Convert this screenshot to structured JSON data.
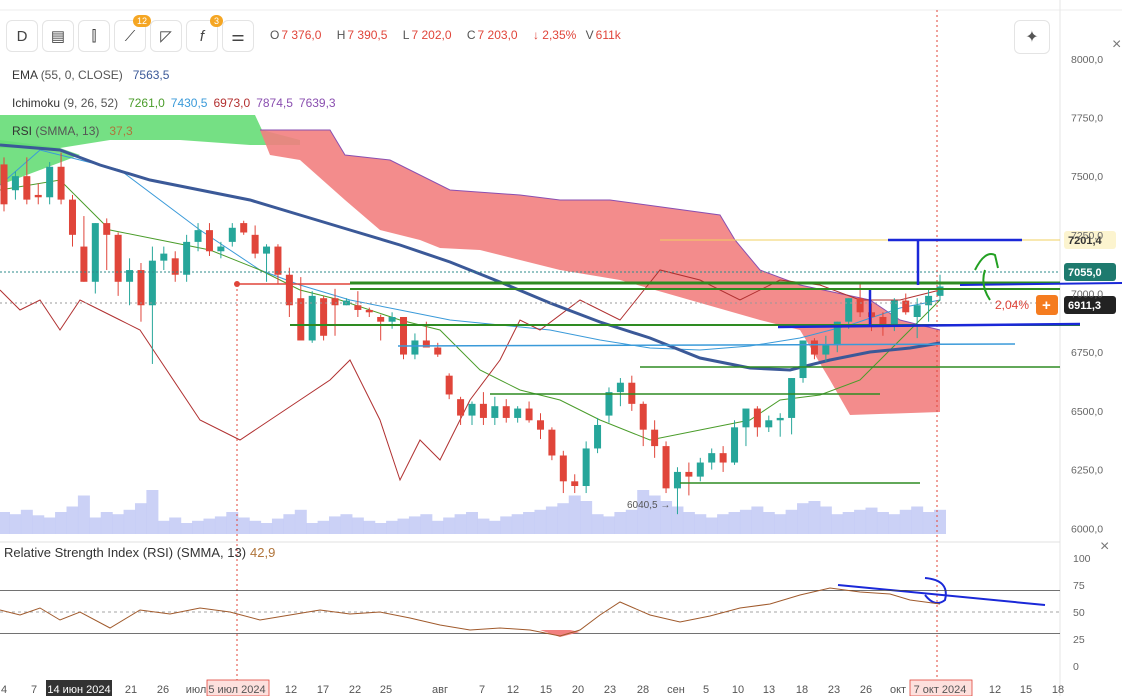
{
  "toolbar": {
    "interval_label": "D",
    "badges": {
      "drawing": "12",
      "indicators": "3"
    },
    "ohlc": {
      "o_label": "O",
      "o": "7 376,0",
      "h_label": "H",
      "h": "7 390,5",
      "l_label": "L",
      "l": "7 202,0",
      "c_label": "C",
      "c": "7 203,0",
      "change": "↓ 2,35%",
      "v_label": "V",
      "v": "611k"
    }
  },
  "indicators": {
    "ema": {
      "name": "EMA",
      "params": "(55, 0, CLOSE)",
      "value": "7563,5"
    },
    "ichimoku": {
      "name": "Ichimoku",
      "params": "(9, 26, 52)",
      "v1": "7261,0",
      "v2": "7430,5",
      "v3": "6973,0",
      "v4": "7874,5",
      "v5": "7639,3"
    },
    "rsi": {
      "name": "RSI",
      "params": "(SMMA, 13)",
      "value": "37,3"
    }
  },
  "rsi_panel": {
    "title": "Relative Strength Index (RSI) (SMMA, 13)",
    "value": "42,9"
  },
  "price_labels": {
    "yellow": "7201,4",
    "last": "7055,0",
    "current": "6911,3",
    "pct": "2,04%",
    "low_marker": "6040,5 →",
    "partial": "7..."
  },
  "colors": {
    "up": "#26a69a",
    "down": "#e0453a",
    "cloud_red": "#f28080",
    "cloud_green": "#66dd77",
    "ema": "#3b5998",
    "volume": "#c5ccf5",
    "drawing_blue": "#1a28d8",
    "drawing_green": "#2e8b22"
  },
  "chart_data": {
    "type": "candlestick",
    "y_range": [
      5950,
      8080
    ],
    "y_ticks": [
      "8000,0",
      "7750,0",
      "7500,0",
      "7250,0",
      "7000,0",
      "6750,0",
      "6500,0",
      "6250,0",
      "6000,0"
    ],
    "x_ticks": [
      "4",
      "7",
      "14 июн 2024",
      "21",
      "26",
      "июл",
      "5 июл 2024",
      "12",
      "17",
      "22",
      "25",
      "авг",
      "7",
      "12",
      "15",
      "20",
      "23",
      "28",
      "сен",
      "5",
      "10",
      "13",
      "18",
      "23",
      "26",
      "окт",
      "7 окт 2024",
      "12",
      "15",
      "18"
    ],
    "candles": [
      [
        7550,
        7580,
        7350,
        7380
      ],
      [
        7440,
        7520,
        7400,
        7500
      ],
      [
        7500,
        7580,
        7380,
        7400
      ],
      [
        7420,
        7470,
        7380,
        7410
      ],
      [
        7410,
        7560,
        7380,
        7540
      ],
      [
        7540,
        7600,
        7380,
        7400
      ],
      [
        7400,
        7420,
        7200,
        7250
      ],
      [
        7200,
        7330,
        7050,
        7050
      ],
      [
        7050,
        7300,
        7000,
        7300
      ],
      [
        7300,
        7320,
        7100,
        7250
      ],
      [
        7250,
        7260,
        6990,
        7050
      ],
      [
        7050,
        7150,
        6950,
        7100
      ],
      [
        7100,
        7130,
        6880,
        6950
      ],
      [
        6950,
        7200,
        6700,
        7140
      ],
      [
        7140,
        7200,
        7100,
        7170
      ],
      [
        7150,
        7180,
        7050,
        7080
      ],
      [
        7080,
        7250,
        7050,
        7220
      ],
      [
        7220,
        7300,
        7180,
        7270
      ],
      [
        7270,
        7300,
        7160,
        7180
      ],
      [
        7180,
        7220,
        7150,
        7200
      ],
      [
        7220,
        7300,
        7200,
        7280
      ],
      [
        7300,
        7310,
        7250,
        7260
      ],
      [
        7250,
        7290,
        7150,
        7170
      ],
      [
        7170,
        7210,
        7050,
        7200
      ],
      [
        7200,
        7210,
        7040,
        7080
      ],
      [
        7080,
        7110,
        6900,
        6950
      ],
      [
        6980,
        7070,
        6820,
        6800
      ],
      [
        6800,
        7010,
        6790,
        6990
      ],
      [
        6980,
        6990,
        6800,
        6820
      ],
      [
        6980,
        7020,
        6820,
        6950
      ],
      [
        6950,
        6980,
        6950,
        6970
      ],
      [
        6950,
        7010,
        6900,
        6930
      ],
      [
        6930,
        6940,
        6900,
        6920
      ],
      [
        6900,
        6910,
        6800,
        6880
      ],
      [
        6880,
        6920,
        6850,
        6900
      ],
      [
        6900,
        6880,
        6720,
        6740
      ],
      [
        6740,
        6830,
        6720,
        6800
      ],
      [
        6800,
        6880,
        6770,
        6770
      ],
      [
        6770,
        6790,
        6730,
        6740
      ],
      [
        6650,
        6660,
        6550,
        6570
      ],
      [
        6550,
        6560,
        6440,
        6480
      ],
      [
        6480,
        6540,
        6440,
        6530
      ],
      [
        6530,
        6580,
        6440,
        6470
      ],
      [
        6470,
        6560,
        6440,
        6520
      ],
      [
        6520,
        6550,
        6450,
        6470
      ],
      [
        6470,
        6520,
        6450,
        6510
      ],
      [
        6510,
        6540,
        6450,
        6460
      ],
      [
        6460,
        6490,
        6380,
        6420
      ],
      [
        6420,
        6430,
        6290,
        6310
      ],
      [
        6310,
        6330,
        6150,
        6200
      ],
      [
        6200,
        6230,
        6150,
        6180
      ],
      [
        6180,
        6370,
        6150,
        6340
      ],
      [
        6340,
        6470,
        6320,
        6440
      ],
      [
        6480,
        6600,
        6450,
        6580
      ],
      [
        6580,
        6640,
        6520,
        6620
      ],
      [
        6620,
        6650,
        6500,
        6530
      ],
      [
        6530,
        6540,
        6350,
        6420
      ],
      [
        6420,
        6460,
        6300,
        6350
      ],
      [
        6350,
        6370,
        6150,
        6170
      ],
      [
        6170,
        6260,
        6060,
        6240
      ],
      [
        6240,
        6280,
        6140,
        6220
      ],
      [
        6220,
        6300,
        6200,
        6280
      ],
      [
        6280,
        6340,
        6250,
        6320
      ],
      [
        6320,
        6350,
        6240,
        6280
      ],
      [
        6280,
        6460,
        6270,
        6430
      ],
      [
        6430,
        6500,
        6350,
        6510
      ],
      [
        6510,
        6520,
        6390,
        6430
      ],
      [
        6430,
        6480,
        6410,
        6460
      ],
      [
        6460,
        6490,
        6390,
        6470
      ],
      [
        6470,
        6640,
        6400,
        6640
      ],
      [
        6640,
        6800,
        6620,
        6800
      ],
      [
        6800,
        6810,
        6720,
        6740
      ],
      [
        6740,
        6820,
        6710,
        6780
      ],
      [
        6780,
        6880,
        6750,
        6880
      ],
      [
        6880,
        6980,
        6850,
        6980
      ],
      [
        6980,
        7050,
        6900,
        6920
      ],
      [
        6920,
        6960,
        6840,
        6900
      ],
      [
        6900,
        6920,
        6820,
        6860
      ],
      [
        6860,
        6980,
        6840,
        6970
      ],
      [
        6970,
        7000,
        6910,
        6920
      ],
      [
        6900,
        6980,
        6810,
        6950
      ],
      [
        6950,
        7020,
        6880,
        6990
      ],
      [
        6990,
        7080,
        6970,
        7030
      ]
    ],
    "volume_scale_max": 100,
    "volumes": [
      20,
      18,
      22,
      17,
      15,
      20,
      25,
      35,
      15,
      20,
      18,
      22,
      28,
      40,
      12,
      15,
      10,
      12,
      14,
      16,
      20,
      15,
      12,
      10,
      14,
      18,
      22,
      10,
      12,
      16,
      18,
      15,
      12,
      10,
      12,
      14,
      16,
      18,
      12,
      15,
      18,
      20,
      14,
      12,
      16,
      18,
      20,
      22,
      25,
      28,
      35,
      30,
      18,
      16,
      20,
      22,
      40,
      35,
      30,
      25,
      20,
      18,
      15,
      18,
      20,
      22,
      25,
      20,
      18,
      22,
      28,
      30,
      25,
      18,
      20,
      22,
      24,
      20,
      18,
      22,
      25,
      20,
      22
    ],
    "rsi": {
      "y_range": [
        0,
        100
      ],
      "levels": [
        70,
        50,
        30
      ],
      "y_ticks": [
        "100",
        "75",
        "50",
        "25",
        "0"
      ]
    }
  }
}
